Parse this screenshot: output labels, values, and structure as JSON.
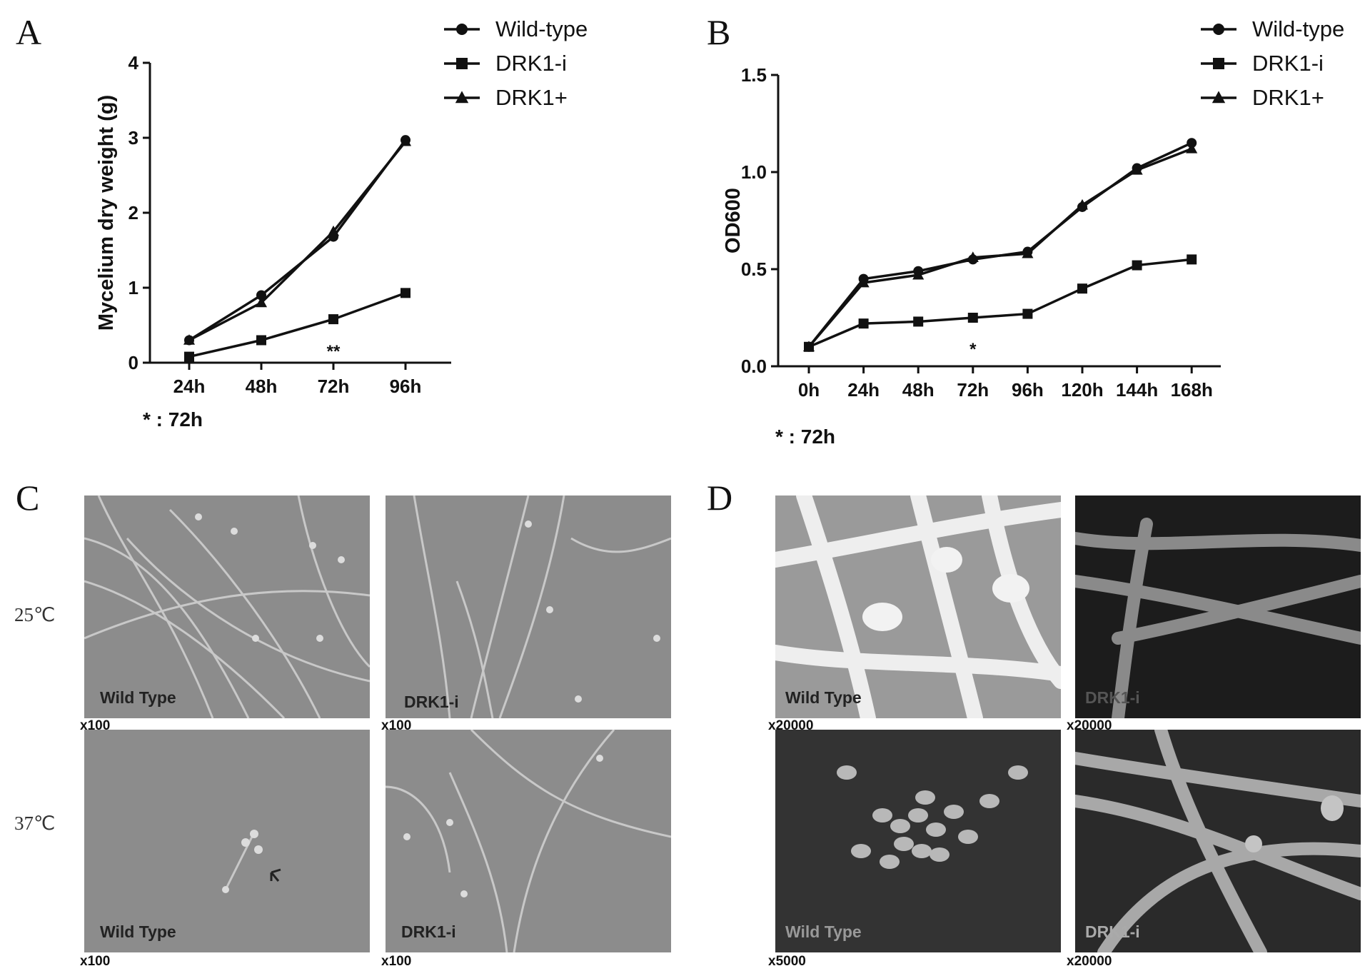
{
  "panels": {
    "A": {
      "letter": "A",
      "significance_note": "* : 72h",
      "significance_mark": "**",
      "chart_data": {
        "type": "line",
        "categories": [
          "24h",
          "48h",
          "72h",
          "96h"
        ],
        "ylabel": "Mycelium dry weight (g)",
        "xlabel": "",
        "ylim": [
          0,
          4
        ],
        "yticks": [
          "0",
          "1",
          "2",
          "3",
          "4"
        ],
        "series": [
          {
            "name": "Wild-type",
            "marker": "circle",
            "values": [
              0.3,
              0.9,
              1.68,
              2.97
            ]
          },
          {
            "name": "DRK1-i",
            "marker": "square",
            "values": [
              0.08,
              0.3,
              0.58,
              0.93
            ]
          },
          {
            "name": "DRK1+",
            "marker": "triangle",
            "values": [
              0.3,
              0.8,
              1.75,
              2.95
            ]
          }
        ],
        "legend": "top-right"
      }
    },
    "B": {
      "letter": "B",
      "significance_note": "* : 72h",
      "significance_mark": "*",
      "chart_data": {
        "type": "line",
        "categories": [
          "0h",
          "24h",
          "48h",
          "72h",
          "96h",
          "120h",
          "144h",
          "168h"
        ],
        "ylabel": "OD600",
        "xlabel": "",
        "ylim": [
          0,
          1.5
        ],
        "yticks": [
          "0.0",
          "0.5",
          "1.0",
          "1.5"
        ],
        "series": [
          {
            "name": "Wild-type",
            "marker": "circle",
            "values": [
              0.1,
              0.45,
              0.49,
              0.55,
              0.59,
              0.82,
              1.02,
              1.15
            ]
          },
          {
            "name": "DRK1-i",
            "marker": "square",
            "values": [
              0.1,
              0.22,
              0.23,
              0.25,
              0.27,
              0.4,
              0.52,
              0.55
            ]
          },
          {
            "name": "DRK1+",
            "marker": "triangle",
            "values": [
              0.1,
              0.43,
              0.47,
              0.56,
              0.58,
              0.83,
              1.01,
              1.12
            ]
          }
        ],
        "legend": "top-right"
      }
    },
    "C": {
      "letter": "C",
      "temperatures": [
        "25℃",
        "37℃"
      ],
      "images": [
        {
          "label": "Wild Type",
          "magnification": "x100"
        },
        {
          "label": "DRK1-i",
          "magnification": "x100"
        },
        {
          "label": "Wild Type",
          "magnification": "x100"
        },
        {
          "label": "DRK1-i",
          "magnification": "x100"
        }
      ]
    },
    "D": {
      "letter": "D",
      "images": [
        {
          "label": "Wild Type",
          "magnification": "x20000"
        },
        {
          "label": "DRK1-i",
          "magnification": "x20000"
        },
        {
          "label": "Wild Type",
          "magnification": "x5000"
        },
        {
          "label": "DRK1-i",
          "magnification": "x20000"
        }
      ]
    }
  }
}
